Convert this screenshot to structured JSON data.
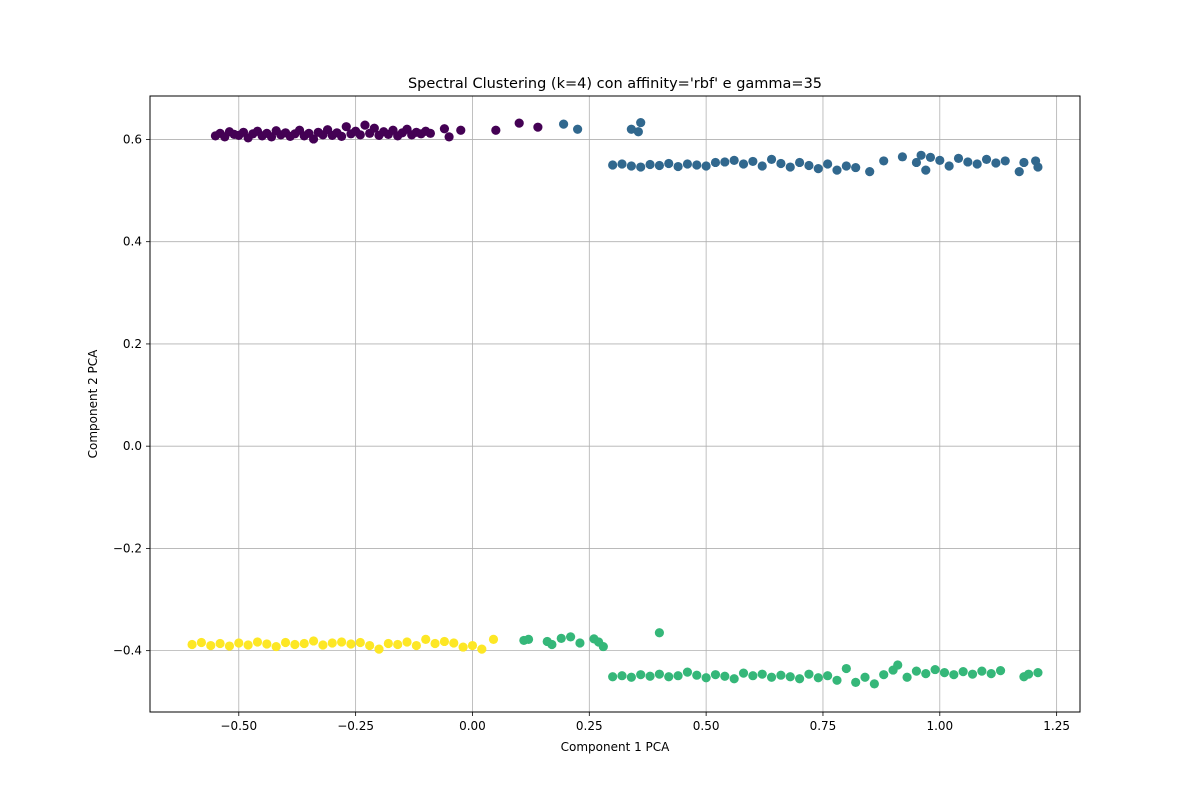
{
  "chart_data": {
    "type": "scatter",
    "title": "Spectral Clustering (k=4) con affinity='rbf' e gamma=35",
    "xlabel": "Component 1 PCA",
    "ylabel": "Component 2 PCA",
    "xlim": [
      -0.69,
      1.3
    ],
    "ylim": [
      -0.52,
      0.685
    ],
    "grid": true,
    "xticks": [
      -0.5,
      -0.25,
      0.0,
      0.25,
      0.5,
      0.75,
      1.0,
      1.25
    ],
    "xtick_labels": [
      "−0.50",
      "−0.25",
      "0.00",
      "0.25",
      "0.50",
      "0.75",
      "1.00",
      "1.25"
    ],
    "yticks": [
      -0.4,
      -0.2,
      0.0,
      0.2,
      0.4,
      0.6
    ],
    "ytick_labels": [
      "−0.4",
      "−0.2",
      "0.0",
      "0.2",
      "0.4",
      "0.6"
    ],
    "series": [
      {
        "color": "#440154",
        "points": [
          [
            -0.55,
            0.607
          ],
          [
            -0.54,
            0.612
          ],
          [
            -0.53,
            0.605
          ],
          [
            -0.52,
            0.615
          ],
          [
            -0.51,
            0.61
          ],
          [
            -0.5,
            0.608
          ],
          [
            -0.49,
            0.614
          ],
          [
            -0.48,
            0.603
          ],
          [
            -0.47,
            0.611
          ],
          [
            -0.46,
            0.616
          ],
          [
            -0.45,
            0.607
          ],
          [
            -0.44,
            0.612
          ],
          [
            -0.43,
            0.605
          ],
          [
            -0.42,
            0.617
          ],
          [
            -0.41,
            0.609
          ],
          [
            -0.4,
            0.613
          ],
          [
            -0.39,
            0.606
          ],
          [
            -0.38,
            0.611
          ],
          [
            -0.37,
            0.618
          ],
          [
            -0.36,
            0.607
          ],
          [
            -0.35,
            0.612
          ],
          [
            -0.34,
            0.601
          ],
          [
            -0.33,
            0.614
          ],
          [
            -0.32,
            0.609
          ],
          [
            -0.31,
            0.619
          ],
          [
            -0.3,
            0.608
          ],
          [
            -0.29,
            0.613
          ],
          [
            -0.28,
            0.606
          ],
          [
            -0.27,
            0.625
          ],
          [
            -0.26,
            0.611
          ],
          [
            -0.25,
            0.616
          ],
          [
            -0.24,
            0.609
          ],
          [
            -0.23,
            0.628
          ],
          [
            -0.22,
            0.612
          ],
          [
            -0.21,
            0.622
          ],
          [
            -0.2,
            0.608
          ],
          [
            -0.19,
            0.615
          ],
          [
            -0.18,
            0.61
          ],
          [
            -0.17,
            0.618
          ],
          [
            -0.16,
            0.607
          ],
          [
            -0.15,
            0.613
          ],
          [
            -0.14,
            0.62
          ],
          [
            -0.13,
            0.609
          ],
          [
            -0.12,
            0.614
          ],
          [
            -0.11,
            0.611
          ],
          [
            -0.1,
            0.616
          ],
          [
            -0.09,
            0.612
          ],
          [
            -0.06,
            0.621
          ],
          [
            -0.05,
            0.605
          ],
          [
            -0.025,
            0.618
          ],
          [
            0.05,
            0.618
          ],
          [
            0.1,
            0.632
          ],
          [
            0.14,
            0.624
          ]
        ]
      },
      {
        "color": "#31688e",
        "points": [
          [
            0.195,
            0.63
          ],
          [
            0.225,
            0.62
          ],
          [
            0.34,
            0.62
          ],
          [
            0.355,
            0.615
          ],
          [
            0.36,
            0.633
          ],
          [
            0.3,
            0.55
          ],
          [
            0.32,
            0.552
          ],
          [
            0.34,
            0.548
          ],
          [
            0.36,
            0.546
          ],
          [
            0.38,
            0.551
          ],
          [
            0.4,
            0.549
          ],
          [
            0.42,
            0.553
          ],
          [
            0.44,
            0.547
          ],
          [
            0.46,
            0.552
          ],
          [
            0.48,
            0.55
          ],
          [
            0.5,
            0.548
          ],
          [
            0.52,
            0.555
          ],
          [
            0.54,
            0.556
          ],
          [
            0.56,
            0.559
          ],
          [
            0.58,
            0.552
          ],
          [
            0.6,
            0.557
          ],
          [
            0.62,
            0.548
          ],
          [
            0.64,
            0.561
          ],
          [
            0.66,
            0.553
          ],
          [
            0.68,
            0.546
          ],
          [
            0.7,
            0.555
          ],
          [
            0.72,
            0.549
          ],
          [
            0.74,
            0.543
          ],
          [
            0.76,
            0.552
          ],
          [
            0.78,
            0.54
          ],
          [
            0.8,
            0.548
          ],
          [
            0.82,
            0.545
          ],
          [
            0.85,
            0.537
          ],
          [
            0.88,
            0.558
          ],
          [
            0.92,
            0.566
          ],
          [
            0.95,
            0.555
          ],
          [
            0.96,
            0.569
          ],
          [
            0.97,
            0.54
          ],
          [
            0.98,
            0.565
          ],
          [
            1.0,
            0.559
          ],
          [
            1.02,
            0.548
          ],
          [
            1.04,
            0.563
          ],
          [
            1.06,
            0.556
          ],
          [
            1.08,
            0.552
          ],
          [
            1.1,
            0.561
          ],
          [
            1.12,
            0.554
          ],
          [
            1.14,
            0.558
          ],
          [
            1.17,
            0.537
          ],
          [
            1.18,
            0.555
          ],
          [
            1.205,
            0.558
          ],
          [
            1.21,
            0.546
          ]
        ]
      },
      {
        "color": "#35b779",
        "points": [
          [
            0.11,
            -0.38
          ],
          [
            0.12,
            -0.378
          ],
          [
            0.16,
            -0.382
          ],
          [
            0.17,
            -0.388
          ],
          [
            0.19,
            -0.376
          ],
          [
            0.21,
            -0.373
          ],
          [
            0.23,
            -0.385
          ],
          [
            0.26,
            -0.377
          ],
          [
            0.27,
            -0.383
          ],
          [
            0.28,
            -0.392
          ],
          [
            0.4,
            -0.365
          ],
          [
            0.3,
            -0.451
          ],
          [
            0.32,
            -0.449
          ],
          [
            0.34,
            -0.452
          ],
          [
            0.36,
            -0.447
          ],
          [
            0.38,
            -0.45
          ],
          [
            0.4,
            -0.446
          ],
          [
            0.42,
            -0.451
          ],
          [
            0.44,
            -0.449
          ],
          [
            0.46,
            -0.442
          ],
          [
            0.48,
            -0.448
          ],
          [
            0.5,
            -0.453
          ],
          [
            0.52,
            -0.447
          ],
          [
            0.54,
            -0.45
          ],
          [
            0.56,
            -0.455
          ],
          [
            0.58,
            -0.444
          ],
          [
            0.6,
            -0.449
          ],
          [
            0.62,
            -0.446
          ],
          [
            0.64,
            -0.452
          ],
          [
            0.66,
            -0.448
          ],
          [
            0.68,
            -0.451
          ],
          [
            0.7,
            -0.455
          ],
          [
            0.72,
            -0.446
          ],
          [
            0.74,
            -0.453
          ],
          [
            0.76,
            -0.449
          ],
          [
            0.78,
            -0.458
          ],
          [
            0.8,
            -0.435
          ],
          [
            0.82,
            -0.462
          ],
          [
            0.84,
            -0.452
          ],
          [
            0.86,
            -0.465
          ],
          [
            0.88,
            -0.447
          ],
          [
            0.9,
            -0.438
          ],
          [
            0.91,
            -0.428
          ],
          [
            0.93,
            -0.452
          ],
          [
            0.95,
            -0.44
          ],
          [
            0.97,
            -0.445
          ],
          [
            0.99,
            -0.437
          ],
          [
            1.01,
            -0.443
          ],
          [
            1.03,
            -0.447
          ],
          [
            1.05,
            -0.441
          ],
          [
            1.07,
            -0.446
          ],
          [
            1.09,
            -0.44
          ],
          [
            1.11,
            -0.445
          ],
          [
            1.13,
            -0.439
          ],
          [
            1.18,
            -0.451
          ],
          [
            1.19,
            -0.446
          ],
          [
            1.21,
            -0.443
          ]
        ]
      },
      {
        "color": "#fde725",
        "points": [
          [
            -0.6,
            -0.388
          ],
          [
            -0.58,
            -0.384
          ],
          [
            -0.56,
            -0.39
          ],
          [
            -0.54,
            -0.386
          ],
          [
            -0.52,
            -0.391
          ],
          [
            -0.5,
            -0.385
          ],
          [
            -0.48,
            -0.389
          ],
          [
            -0.46,
            -0.383
          ],
          [
            -0.44,
            -0.387
          ],
          [
            -0.42,
            -0.392
          ],
          [
            -0.4,
            -0.384
          ],
          [
            -0.38,
            -0.388
          ],
          [
            -0.36,
            -0.386
          ],
          [
            -0.34,
            -0.381
          ],
          [
            -0.32,
            -0.389
          ],
          [
            -0.3,
            -0.385
          ],
          [
            -0.28,
            -0.383
          ],
          [
            -0.26,
            -0.387
          ],
          [
            -0.24,
            -0.384
          ],
          [
            -0.22,
            -0.39
          ],
          [
            -0.2,
            -0.397
          ],
          [
            -0.18,
            -0.386
          ],
          [
            -0.16,
            -0.388
          ],
          [
            -0.14,
            -0.383
          ],
          [
            -0.12,
            -0.39
          ],
          [
            -0.1,
            -0.378
          ],
          [
            -0.08,
            -0.386
          ],
          [
            -0.06,
            -0.382
          ],
          [
            -0.04,
            -0.385
          ],
          [
            -0.02,
            -0.393
          ],
          [
            0.0,
            -0.39
          ],
          [
            0.02,
            -0.397
          ],
          [
            0.045,
            -0.378
          ]
        ]
      }
    ]
  }
}
